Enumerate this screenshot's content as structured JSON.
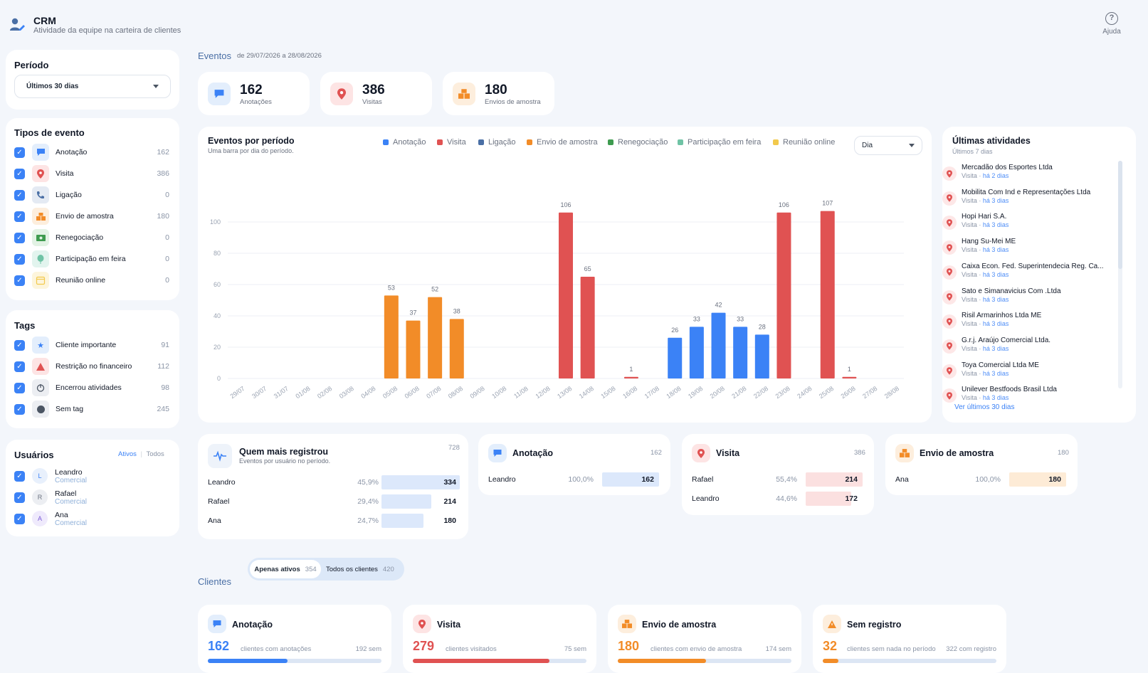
{
  "header": {
    "title": "CRM",
    "subtitle": "Atividade da equipe na carteira de clientes",
    "help_label": "Ajuda",
    "help_glyph": "?"
  },
  "period": {
    "heading": "Período",
    "selected": "Últimos 30 dias"
  },
  "event_types": {
    "heading": "Tipos de evento",
    "items": [
      {
        "label": "Anotação",
        "count": "162",
        "icon": "chat-bubble-icon",
        "color": "#3b82f6"
      },
      {
        "label": "Visita",
        "count": "386",
        "icon": "map-pin-icon",
        "color": "#e05252"
      },
      {
        "label": "Ligação",
        "count": "0",
        "icon": "phone-icon",
        "color": "#4a6fa5"
      },
      {
        "label": "Envio de amostra",
        "count": "180",
        "icon": "boxes-icon",
        "color": "#f28c28"
      },
      {
        "label": "Renegociação",
        "count": "0",
        "icon": "money-icon",
        "color": "#3e9b4f"
      },
      {
        "label": "Participação em feira",
        "count": "0",
        "icon": "balloon-icon",
        "color": "#6fc3a5"
      },
      {
        "label": "Reunião online",
        "count": "0",
        "icon": "calendar-icon",
        "color": "#f2c94c"
      }
    ]
  },
  "tags": {
    "heading": "Tags",
    "items": [
      {
        "label": "Cliente importante",
        "count": "91",
        "icon": "star-icon"
      },
      {
        "label": "Restrição no financeiro",
        "count": "112",
        "icon": "warning-icon"
      },
      {
        "label": "Encerrou atividades",
        "count": "98",
        "icon": "power-icon"
      },
      {
        "label": "Sem tag",
        "count": "245",
        "icon": "circle-icon"
      }
    ]
  },
  "users": {
    "heading": "Usuários",
    "filter_active": "Ativos",
    "filter_all": "Todos",
    "items": [
      {
        "initial": "L",
        "name": "Leandro",
        "role": "Comercial"
      },
      {
        "initial": "R",
        "name": "Rafael",
        "role": "Comercial"
      },
      {
        "initial": "A",
        "name": "Ana",
        "role": "Comercial"
      }
    ]
  },
  "events": {
    "heading": "Eventos",
    "range": "de 29/07/2026 a 28/08/2026",
    "stats": [
      {
        "value": "162",
        "label": "Anotações",
        "icon": "chat-bubble-icon"
      },
      {
        "value": "386",
        "label": "Visitas",
        "icon": "map-pin-icon"
      },
      {
        "value": "180",
        "label": "Envios de amostra",
        "icon": "boxes-icon"
      }
    ]
  },
  "chart_card": {
    "title": "Eventos por período",
    "subtitle": "Uma barra por dia do período.",
    "granularity": "Dia"
  },
  "chart_data": {
    "type": "bar",
    "categories": [
      "29/07",
      "30/07",
      "31/07",
      "01/08",
      "02/08",
      "03/08",
      "04/08",
      "05/08",
      "06/08",
      "07/08",
      "08/08",
      "09/08",
      "10/08",
      "11/08",
      "12/08",
      "13/08",
      "14/08",
      "15/08",
      "16/08",
      "17/08",
      "18/08",
      "19/08",
      "20/08",
      "21/08",
      "22/08",
      "23/08",
      "24/08",
      "25/08",
      "26/08",
      "27/08",
      "28/08"
    ],
    "values": [
      0,
      0,
      0,
      0,
      0,
      0,
      0,
      53,
      37,
      52,
      38,
      0,
      0,
      0,
      0,
      106,
      65,
      0,
      1,
      0,
      26,
      33,
      42,
      33,
      28,
      106,
      0,
      107,
      1,
      0,
      0
    ],
    "bar_series": [
      null,
      null,
      null,
      null,
      null,
      null,
      null,
      "Envio de amostra",
      "Envio de amostra",
      "Envio de amostra",
      "Envio de amostra",
      null,
      null,
      null,
      null,
      "Visita",
      "Visita",
      null,
      "Visita",
      null,
      "Anotação",
      "Anotação",
      "Anotação",
      "Anotação",
      "Anotação",
      "Visita",
      null,
      "Visita",
      "Visita",
      null,
      null
    ],
    "legend": [
      {
        "name": "Anotação",
        "color": "#3b82f6"
      },
      {
        "name": "Visita",
        "color": "#e05252"
      },
      {
        "name": "Ligação",
        "color": "#4a6fa5"
      },
      {
        "name": "Envio de amostra",
        "color": "#f28c28"
      },
      {
        "name": "Renegociação",
        "color": "#3e9b4f"
      },
      {
        "name": "Participação em feira",
        "color": "#6fc3a5"
      },
      {
        "name": "Reunião online",
        "color": "#f2c94c"
      }
    ],
    "series_colors": {
      "Anotação": "#3b82f6",
      "Visita": "#e05252",
      "Envio de amostra": "#f28c28"
    },
    "yticks": [
      0,
      20,
      40,
      60,
      80,
      100
    ],
    "ylim": [
      0,
      110
    ],
    "grid": true,
    "legend_position": "top"
  },
  "latest": {
    "heading": "Últimas atividades",
    "subtitle": "Últimos 7 dias",
    "link": "Ver últimos 30 dias",
    "items": [
      {
        "name": "Mercadão dos Esportes Ltda",
        "type": "Visita ·",
        "when": "há 2 dias"
      },
      {
        "name": "Mobilita Com Ind e Representações Ltda",
        "type": "Visita ·",
        "when": "há 3 dias"
      },
      {
        "name": "Hopi Hari S.A.",
        "type": "Visita ·",
        "when": "há 3 dias"
      },
      {
        "name": "Hang Su-Mei ME",
        "type": "Visita ·",
        "when": "há 3 dias"
      },
      {
        "name": "Caixa Econ. Fed. Superintendecia Reg. Ca...",
        "type": "Visita ·",
        "when": "há 3 dias"
      },
      {
        "name": "Sato e Simanavicius Com .Ltda",
        "type": "Visita ·",
        "when": "há 3 dias"
      },
      {
        "name": "Risil Armarinhos Ltda ME",
        "type": "Visita ·",
        "when": "há 3 dias"
      },
      {
        "name": "G.r.j. Araújo Comercial Ltda.",
        "type": "Visita ·",
        "when": "há 3 dias"
      },
      {
        "name": "Toya Comercial Ltda ME",
        "type": "Visita ·",
        "when": "há 3 dias"
      },
      {
        "name": "Unilever Bestfoods Brasil Ltda",
        "type": "Visita ·",
        "when": "há 3 dias"
      }
    ]
  },
  "top_users": {
    "title": "Quem mais registrou",
    "subtitle": "Eventos por usuário no período.",
    "total": "728",
    "rows": [
      {
        "name": "Leandro",
        "pct": "45,9%",
        "value": "334",
        "share": 0.459
      },
      {
        "name": "Rafael",
        "pct": "29,4%",
        "value": "214",
        "share": 0.294
      },
      {
        "name": "Ana",
        "pct": "24,7%",
        "value": "180",
        "share": 0.247
      }
    ]
  },
  "by_type": [
    {
      "title": "Anotação",
      "total": "162",
      "icon": "chat-bubble-icon",
      "rows": [
        {
          "name": "Leandro",
          "pct": "100,0%",
          "value": "162",
          "share": 1.0
        }
      ]
    },
    {
      "title": "Visita",
      "total": "386",
      "icon": "map-pin-icon",
      "rows": [
        {
          "name": "Rafael",
          "pct": "55,4%",
          "value": "214",
          "share": 0.554
        },
        {
          "name": "Leandro",
          "pct": "44,6%",
          "value": "172",
          "share": 0.446
        }
      ]
    },
    {
      "title": "Envio de amostra",
      "total": "180",
      "icon": "boxes-icon",
      "rows": [
        {
          "name": "Ana",
          "pct": "100,0%",
          "value": "180",
          "share": 1.0
        }
      ]
    }
  ],
  "clients": {
    "heading": "Clientes",
    "toggle_active_label": "Apenas ativos",
    "toggle_active_count": "354",
    "toggle_all_label": "Todos os clientes",
    "toggle_all_count": "420",
    "cards": [
      {
        "title": "Anotação",
        "value": "162",
        "text": "clientes com anotações",
        "rest": "192 sem",
        "ratio": 0.458,
        "icon": "chat-bubble-icon"
      },
      {
        "title": "Visita",
        "value": "279",
        "text": "clientes visitados",
        "rest": "75 sem",
        "ratio": 0.788,
        "icon": "map-pin-icon"
      },
      {
        "title": "Envio de amostra",
        "value": "180",
        "text": "clientes com envio de amostra",
        "rest": "174 sem",
        "ratio": 0.508,
        "icon": "boxes-icon"
      },
      {
        "title": "Sem registro",
        "value": "32",
        "text": "clientes sem nada no período",
        "rest": "322 com registro",
        "ratio": 0.09,
        "icon": "warning-icon"
      }
    ]
  }
}
